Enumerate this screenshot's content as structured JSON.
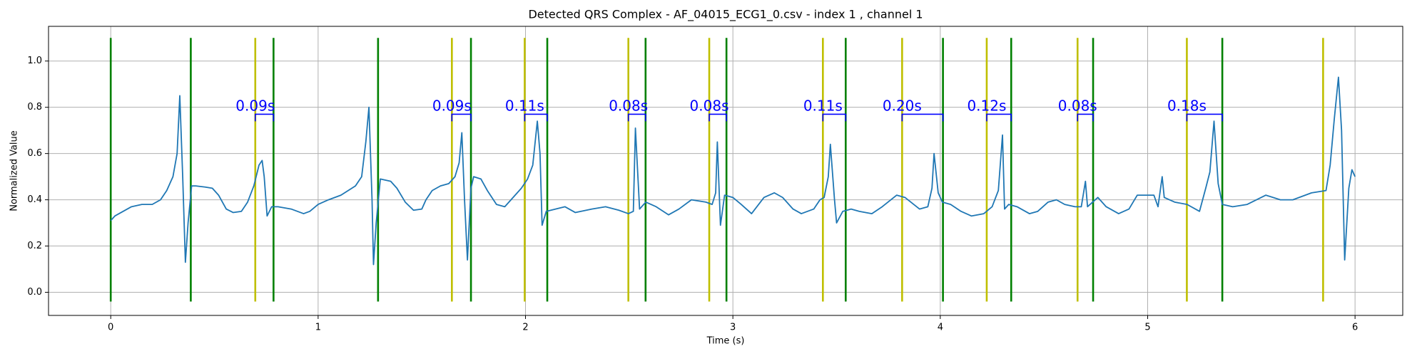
{
  "chart_data": {
    "type": "line",
    "title": "Detected QRS Complex - AF_04015_ECG1_0.csv - index 1 , channel 1",
    "xlabel": "Time (s)",
    "ylabel": "Normalized Value",
    "xlim": [
      -0.3,
      6.23
    ],
    "ylim": [
      -0.1,
      1.15
    ],
    "xticks": [
      0,
      1,
      2,
      3,
      4,
      5,
      6
    ],
    "yticks": [
      {
        "value": 0,
        "label": "0.0"
      },
      0.2,
      0.4,
      0.6,
      0.8,
      {
        "value": 1,
        "label": "1.0"
      }
    ],
    "grid": true,
    "series": [
      {
        "color": "#1f77b4",
        "x": [
          0,
          0.02,
          0.06,
          0.1,
          0.15,
          0.2,
          0.24,
          0.27,
          0.3,
          0.32,
          0.333,
          0.347,
          0.36,
          0.373,
          0.39,
          0.41,
          0.456,
          0.49,
          0.52,
          0.557,
          0.59,
          0.63,
          0.66,
          0.69,
          0.715,
          0.73,
          0.74,
          0.754,
          0.776,
          0.807,
          0.87,
          0.93,
          0.96,
          1.0,
          1.05,
          1.11,
          1.18,
          1.21,
          1.23,
          1.245,
          1.26,
          1.267,
          1.28,
          1.3,
          1.35,
          1.38,
          1.42,
          1.46,
          1.5,
          1.52,
          1.55,
          1.59,
          1.63,
          1.66,
          1.68,
          1.693,
          1.706,
          1.72,
          1.737,
          1.75,
          1.785,
          1.816,
          1.86,
          1.9,
          1.93,
          1.98,
          2.01,
          2.035,
          2.057,
          2.07,
          2.08,
          2.1,
          2.145,
          2.19,
          2.24,
          2.32,
          2.386,
          2.45,
          2.496,
          2.52,
          2.53,
          2.55,
          2.58,
          2.63,
          2.69,
          2.74,
          2.8,
          2.87,
          2.9,
          2.917,
          2.925,
          2.94,
          2.96,
          3.0,
          3.04,
          3.09,
          3.15,
          3.2,
          3.24,
          3.29,
          3.33,
          3.39,
          3.42,
          3.44,
          3.46,
          3.47,
          3.49,
          3.5,
          3.53,
          3.57,
          3.61,
          3.67,
          3.72,
          3.79,
          3.83,
          3.9,
          3.94,
          3.96,
          3.97,
          3.99,
          4.01,
          4.05,
          4.1,
          4.15,
          4.21,
          4.25,
          4.28,
          4.3,
          4.31,
          4.33,
          4.37,
          4.43,
          4.47,
          4.52,
          4.56,
          4.6,
          4.65,
          4.68,
          4.7,
          4.71,
          4.76,
          4.8,
          4.86,
          4.91,
          4.95,
          5.0,
          5.03,
          5.05,
          5.07,
          5.08,
          5.13,
          5.19,
          5.25,
          5.28,
          5.3,
          5.32,
          5.34,
          5.36,
          5.41,
          5.48,
          5.57,
          5.64,
          5.7,
          5.79,
          5.86,
          5.88,
          5.9,
          5.92,
          5.935,
          5.95,
          5.97,
          5.985,
          6.0
        ],
        "values": [
          0.31,
          0.33,
          0.35,
          0.37,
          0.38,
          0.38,
          0.4,
          0.44,
          0.5,
          0.6,
          0.85,
          0.5,
          0.13,
          0.3,
          0.46,
          0.46,
          0.455,
          0.45,
          0.42,
          0.36,
          0.345,
          0.35,
          0.39,
          0.46,
          0.55,
          0.57,
          0.5,
          0.33,
          0.37,
          0.37,
          0.36,
          0.34,
          0.35,
          0.38,
          0.4,
          0.42,
          0.46,
          0.5,
          0.65,
          0.8,
          0.4,
          0.12,
          0.3,
          0.49,
          0.48,
          0.45,
          0.39,
          0.355,
          0.36,
          0.4,
          0.44,
          0.46,
          0.47,
          0.5,
          0.56,
          0.69,
          0.4,
          0.14,
          0.45,
          0.5,
          0.49,
          0.44,
          0.38,
          0.37,
          0.4,
          0.45,
          0.49,
          0.55,
          0.74,
          0.6,
          0.29,
          0.35,
          0.36,
          0.37,
          0.345,
          0.36,
          0.37,
          0.355,
          0.34,
          0.35,
          0.71,
          0.36,
          0.39,
          0.37,
          0.335,
          0.36,
          0.4,
          0.39,
          0.38,
          0.43,
          0.65,
          0.29,
          0.42,
          0.41,
          0.38,
          0.34,
          0.41,
          0.43,
          0.41,
          0.36,
          0.34,
          0.36,
          0.4,
          0.41,
          0.5,
          0.64,
          0.4,
          0.3,
          0.35,
          0.36,
          0.35,
          0.34,
          0.37,
          0.42,
          0.41,
          0.36,
          0.37,
          0.45,
          0.6,
          0.43,
          0.39,
          0.38,
          0.35,
          0.33,
          0.34,
          0.37,
          0.44,
          0.68,
          0.36,
          0.38,
          0.37,
          0.34,
          0.35,
          0.39,
          0.4,
          0.38,
          0.37,
          0.37,
          0.48,
          0.37,
          0.41,
          0.37,
          0.34,
          0.36,
          0.42,
          0.42,
          0.42,
          0.37,
          0.5,
          0.41,
          0.39,
          0.38,
          0.35,
          0.45,
          0.52,
          0.74,
          0.47,
          0.38,
          0.37,
          0.38,
          0.42,
          0.4,
          0.4,
          0.43,
          0.44,
          0.55,
          0.75,
          0.93,
          0.7,
          0.14,
          0.45,
          0.53,
          0.5
        ]
      }
    ],
    "vline_range": [
      -0.04,
      1.1
    ],
    "vlines": [
      {
        "color": "#008000",
        "x": [
          0,
          0.386,
          0.785,
          1.289,
          1.737,
          2.105,
          2.579,
          2.969,
          3.544,
          4.013,
          4.342,
          4.737,
          5.36
        ]
      },
      {
        "color": "#bfbf00",
        "x": [
          0.697,
          1.645,
          1.996,
          2.496,
          2.886,
          3.434,
          3.816,
          4.224,
          4.662,
          5.189,
          5.846
        ]
      }
    ],
    "annotation_color": "#0000ff",
    "bracket_y": 0.77,
    "annotations": [
      {
        "text": "0.09s",
        "x": [
          0.697,
          0.785
        ]
      },
      {
        "text": "0.09s",
        "x": [
          1.645,
          1.737
        ]
      },
      {
        "text": "0.11s",
        "x": [
          1.996,
          2.105
        ]
      },
      {
        "text": "0.08s",
        "x": [
          2.496,
          2.579
        ]
      },
      {
        "text": "0.08s",
        "x": [
          2.886,
          2.969
        ]
      },
      {
        "text": "0.11s",
        "x": [
          3.434,
          3.544
        ]
      },
      {
        "text": "0.20s",
        "x": [
          3.816,
          4.013
        ]
      },
      {
        "text": "0.12s",
        "x": [
          4.224,
          4.342
        ]
      },
      {
        "text": "0.08s",
        "x": [
          4.662,
          4.737
        ]
      },
      {
        "text": "0.18s",
        "x": [
          5.189,
          5.36
        ]
      }
    ]
  }
}
